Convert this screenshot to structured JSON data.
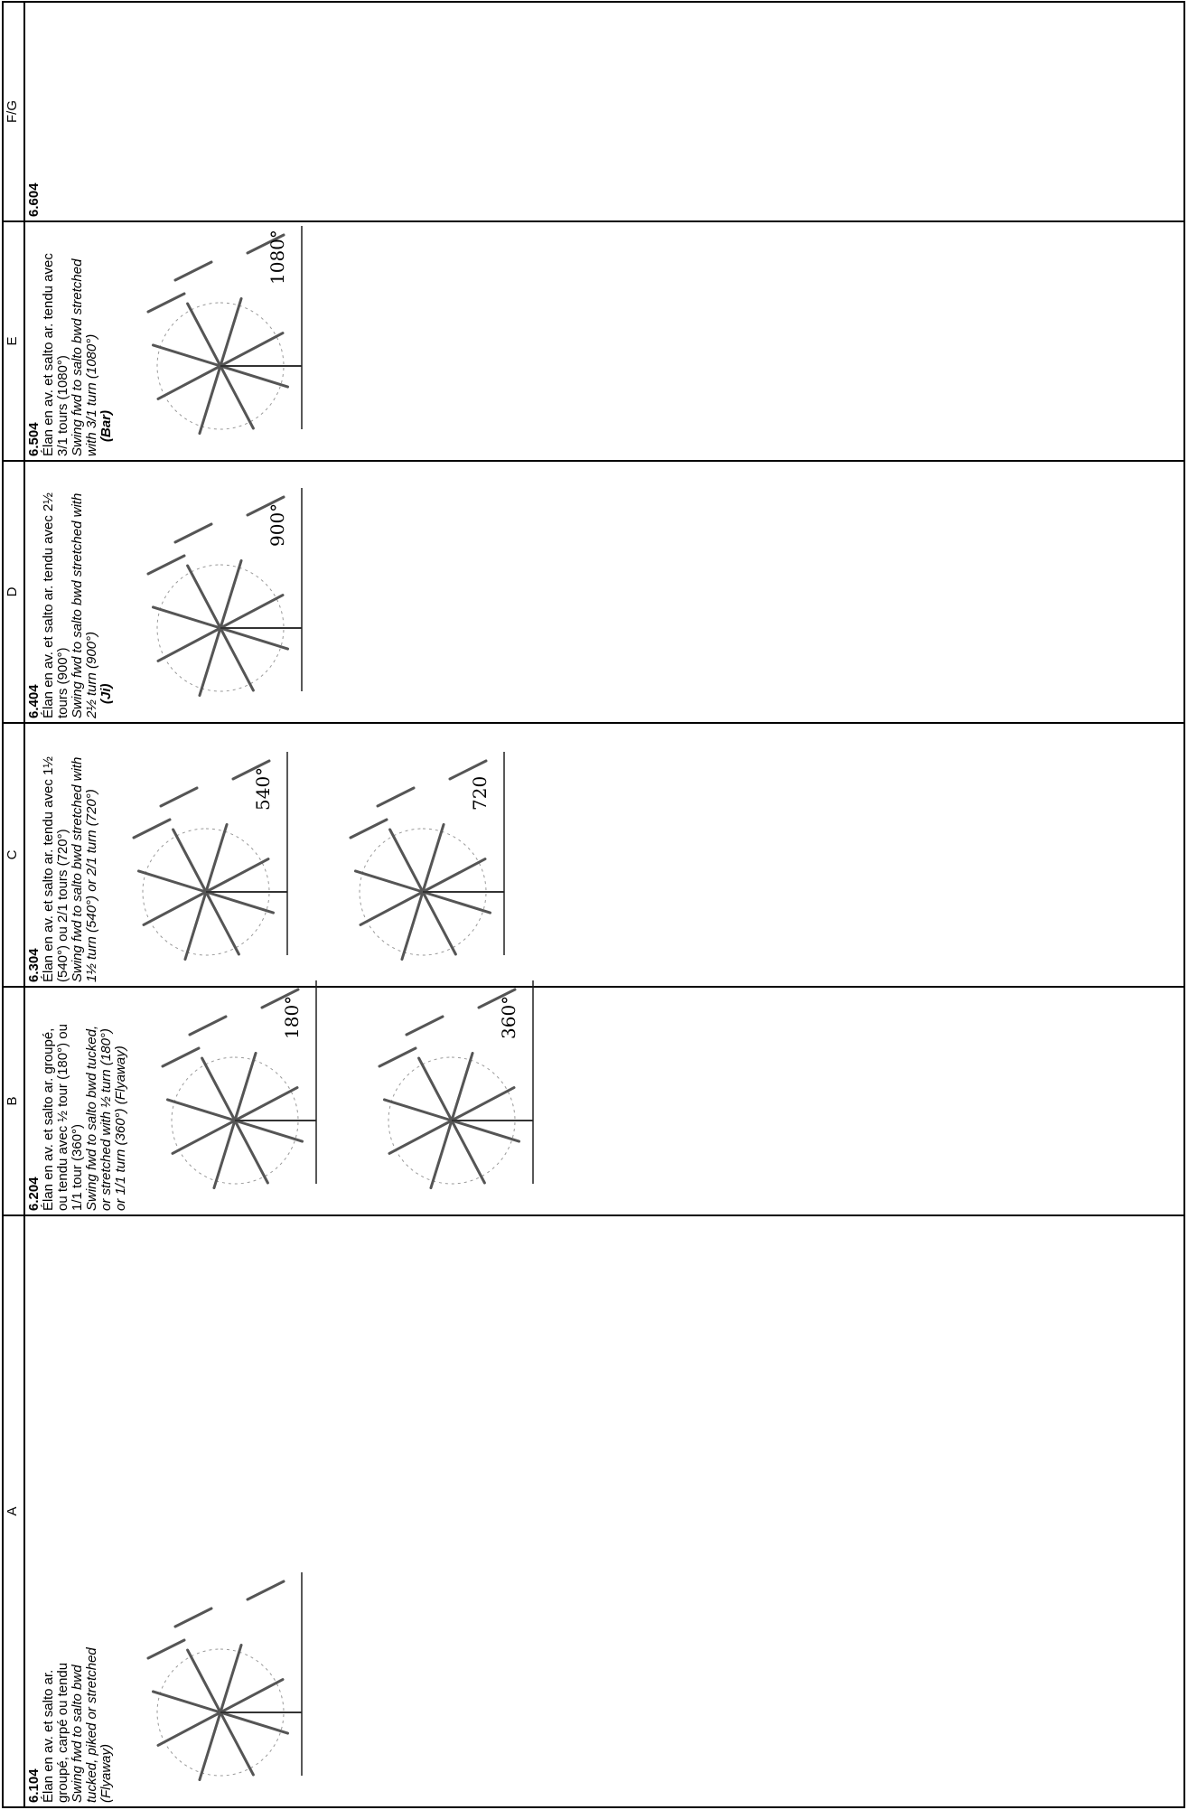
{
  "header": [
    "A",
    "B",
    "C",
    "D",
    "E",
    "F/G"
  ],
  "cells": [
    {
      "code": "6.104",
      "french": [
        "Élan en av. et salto ar.",
        "groupé, carpé ou tendu"
      ],
      "english": [
        "Swing fwd to salto bwd",
        "tucked, piked or stretched",
        "(Flyaway)"
      ]
    },
    {
      "code": "6.204",
      "french": [
        "Élan en av. et salto ar. groupé,",
        "ou tendu avec ½ tour (180°) ou",
        "1/1 tour (360°)"
      ],
      "english": [
        "Swing fwd to salto bwd tucked,",
        "or stretched with ½ turn (180°)",
        "or 1/1 turn (360°) (Flyaway)"
      ],
      "figures": [
        "180°",
        "360°"
      ]
    },
    {
      "code": "6.304",
      "french": [
        "Élan en av. et salto ar. tendu avec 1½",
        "(540°) ou 2/1 tours (720°)"
      ],
      "english": [
        "Swing fwd to salto bwd stretched with",
        "1½ turn (540°) or 2/1 turn (720°)"
      ],
      "figures": [
        "540°",
        "720"
      ]
    },
    {
      "code": "6.404",
      "french": [
        "Élan en av. et salto ar. tendu avec 2½",
        "tours (900°)"
      ],
      "english": [
        "Swing fwd to salto bwd stretched with",
        "2½ turn (900°)"
      ],
      "name": "(Ji)",
      "figures": [
        "900°"
      ]
    },
    {
      "code": "6.504",
      "french": [
        "Élan en av. et salto ar. tendu avec",
        "3/1 tours (1080°)"
      ],
      "english": [
        "Swing fwd to salto bwd stretched",
        "with 3/1 turn (1080°)"
      ],
      "name": "(Bar)",
      "figures": [
        "1080°"
      ]
    },
    {
      "code": "6.604"
    }
  ]
}
